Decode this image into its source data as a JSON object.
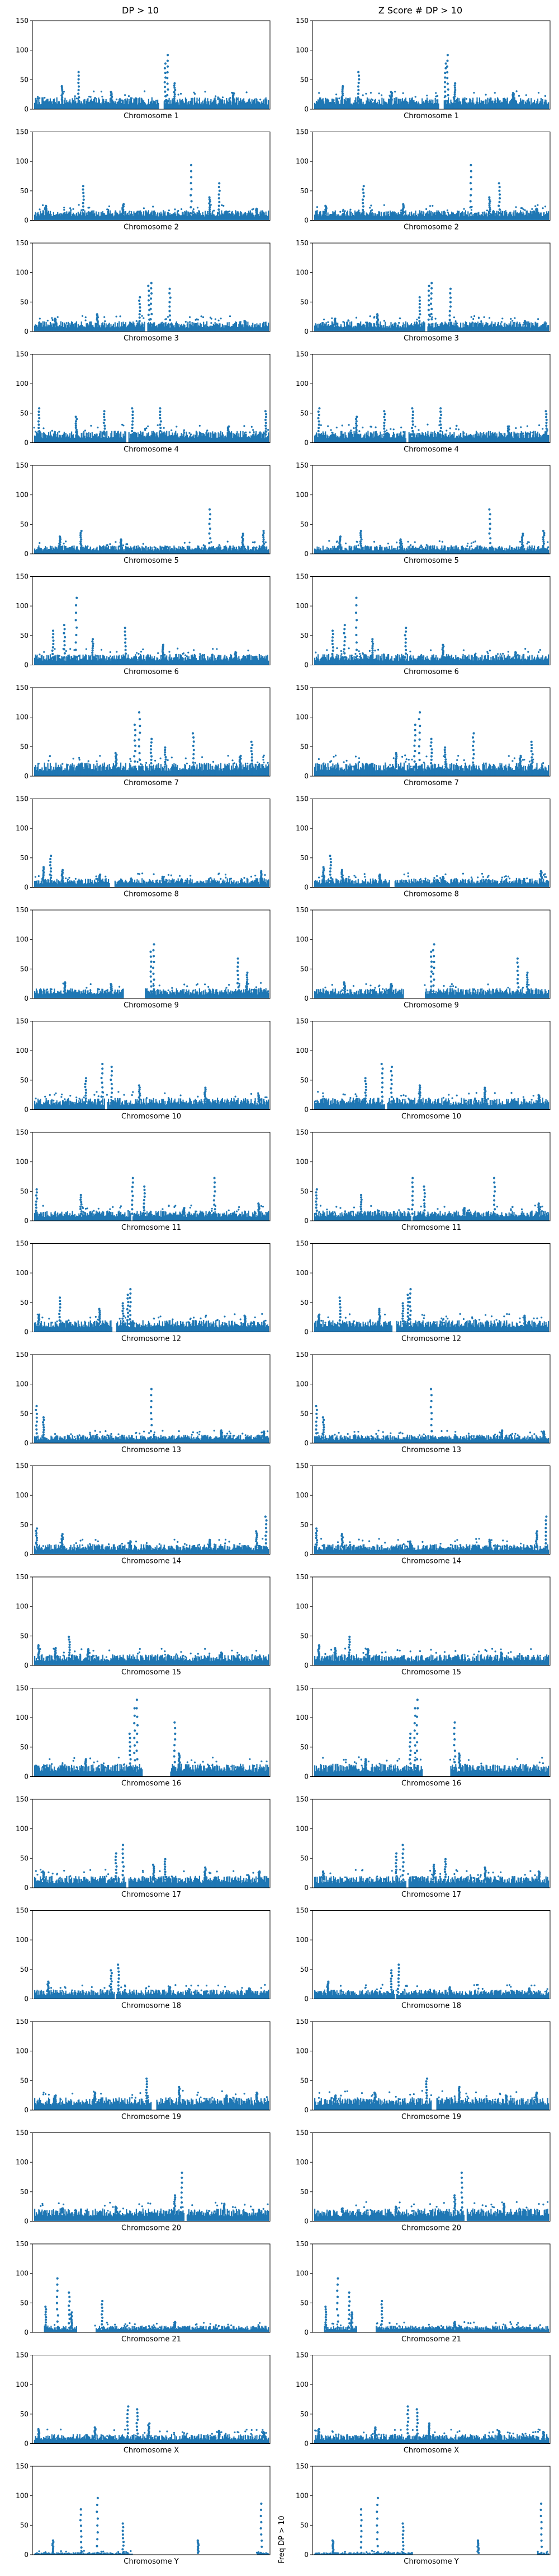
{
  "columns": [
    {
      "title": "DP > 10"
    },
    {
      "title": "Z Score # DP > 10"
    }
  ],
  "y_axis_side_label": "Freq DP > 10",
  "style": {
    "series_color": "#1f77b4",
    "axis_color": "#000000"
  },
  "chart_data": {
    "type": "scatter",
    "layout": "grid 23 rows x 2 columns",
    "y_ticks": [
      0,
      50,
      100,
      150
    ],
    "ylim": [
      0,
      150
    ],
    "grid": false,
    "baseline_level": 12,
    "rows": [
      {
        "xlabel": "Chromosome 1",
        "baseline": 14,
        "peaks": [
          [
            0.12,
            40
          ],
          [
            0.19,
            65
          ],
          [
            0.33,
            30
          ],
          [
            0.56,
            80
          ],
          [
            0.57,
            95
          ],
          [
            0.6,
            45
          ],
          [
            0.85,
            28
          ]
        ],
        "gaps": [
          [
            0.53,
            0.55
          ]
        ]
      },
      {
        "xlabel": "Chromosome 2",
        "baseline": 12,
        "peaks": [
          [
            0.05,
            25
          ],
          [
            0.21,
            60
          ],
          [
            0.38,
            28
          ],
          [
            0.67,
            97
          ],
          [
            0.75,
            40
          ],
          [
            0.79,
            65
          ],
          [
            0.95,
            20
          ]
        ],
        "gaps": []
      },
      {
        "xlabel": "Chromosome 3",
        "baseline": 12,
        "peaks": [
          [
            0.09,
            22
          ],
          [
            0.27,
            30
          ],
          [
            0.45,
            60
          ],
          [
            0.49,
            80
          ],
          [
            0.5,
            85
          ],
          [
            0.58,
            75
          ],
          [
            0.9,
            18
          ]
        ],
        "gaps": [
          [
            0.47,
            0.48
          ]
        ]
      },
      {
        "xlabel": "Chromosome 4",
        "baseline": 14,
        "peaks": [
          [
            0.02,
            60
          ],
          [
            0.18,
            45
          ],
          [
            0.3,
            55
          ],
          [
            0.42,
            60
          ],
          [
            0.54,
            60
          ],
          [
            0.83,
            28
          ],
          [
            0.99,
            55
          ]
        ],
        "gaps": [
          [
            0.39,
            0.4
          ]
        ]
      },
      {
        "xlabel": "Chromosome 5",
        "baseline": 10,
        "peaks": [
          [
            0.11,
            30
          ],
          [
            0.2,
            40
          ],
          [
            0.37,
            25
          ],
          [
            0.75,
            78
          ],
          [
            0.89,
            35
          ],
          [
            0.98,
            40
          ]
        ],
        "gaps": []
      },
      {
        "xlabel": "Chromosome 6",
        "baseline": 13,
        "peaks": [
          [
            0.08,
            60
          ],
          [
            0.13,
            70
          ],
          [
            0.18,
            118
          ],
          [
            0.25,
            45
          ],
          [
            0.39,
            65
          ],
          [
            0.55,
            35
          ],
          [
            0.86,
            22
          ]
        ],
        "gaps": []
      },
      {
        "xlabel": "Chromosome 7",
        "baseline": 16,
        "peaks": [
          [
            0.35,
            40
          ],
          [
            0.43,
            90
          ],
          [
            0.45,
            112
          ],
          [
            0.5,
            65
          ],
          [
            0.56,
            50
          ],
          [
            0.68,
            75
          ],
          [
            0.88,
            35
          ],
          [
            0.93,
            60
          ]
        ],
        "gaps": []
      },
      {
        "xlabel": "Chromosome 8",
        "baseline": 11,
        "peaks": [
          [
            0.04,
            35
          ],
          [
            0.07,
            55
          ],
          [
            0.12,
            30
          ],
          [
            0.28,
            22
          ],
          [
            0.55,
            18
          ],
          [
            0.97,
            28
          ]
        ],
        "gaps": [
          [
            0.32,
            0.34
          ]
        ]
      },
      {
        "xlabel": "Chromosome 9",
        "baseline": 12,
        "peaks": [
          [
            0.13,
            28
          ],
          [
            0.33,
            25
          ],
          [
            0.5,
            82
          ],
          [
            0.51,
            95
          ],
          [
            0.87,
            70
          ],
          [
            0.91,
            45
          ]
        ],
        "gaps": [
          [
            0.38,
            0.47
          ]
        ]
      },
      {
        "xlabel": "Chromosome 10",
        "baseline": 14,
        "peaks": [
          [
            0.22,
            55
          ],
          [
            0.29,
            80
          ],
          [
            0.33,
            75
          ],
          [
            0.45,
            42
          ],
          [
            0.73,
            38
          ],
          [
            0.96,
            25
          ]
        ],
        "gaps": [
          [
            0.3,
            0.31
          ]
        ]
      },
      {
        "xlabel": "Chromosome 11",
        "baseline": 12,
        "peaks": [
          [
            0.01,
            55
          ],
          [
            0.2,
            45
          ],
          [
            0.42,
            75
          ],
          [
            0.47,
            60
          ],
          [
            0.64,
            22
          ],
          [
            0.77,
            75
          ],
          [
            0.96,
            30
          ]
        ],
        "gaps": [
          [
            0.41,
            0.42
          ]
        ]
      },
      {
        "xlabel": "Chromosome 12",
        "baseline": 14,
        "peaks": [
          [
            0.02,
            30
          ],
          [
            0.11,
            60
          ],
          [
            0.28,
            40
          ],
          [
            0.38,
            50
          ],
          [
            0.4,
            65
          ],
          [
            0.41,
            75
          ],
          [
            0.9,
            28
          ]
        ],
        "gaps": [
          [
            0.33,
            0.35
          ]
        ]
      },
      {
        "xlabel": "Chromosome 13",
        "baseline": 10,
        "peaks": [
          [
            0.01,
            65
          ],
          [
            0.04,
            45
          ],
          [
            0.5,
            95
          ],
          [
            0.8,
            22
          ],
          [
            0.98,
            20
          ]
        ],
        "gaps": []
      },
      {
        "xlabel": "Chromosome 14",
        "baseline": 12,
        "peaks": [
          [
            0.01,
            45
          ],
          [
            0.12,
            35
          ],
          [
            0.41,
            22
          ],
          [
            0.75,
            25
          ],
          [
            0.95,
            40
          ],
          [
            0.99,
            66
          ]
        ],
        "gaps": []
      },
      {
        "xlabel": "Chromosome 15",
        "baseline": 13,
        "peaks": [
          [
            0.02,
            35
          ],
          [
            0.09,
            30
          ],
          [
            0.15,
            50
          ],
          [
            0.23,
            28
          ],
          [
            0.8,
            22
          ]
        ],
        "gaps": []
      },
      {
        "xlabel": "Chromosome 16",
        "baseline": 15,
        "peaks": [
          [
            0.22,
            30
          ],
          [
            0.41,
            75
          ],
          [
            0.43,
            120
          ],
          [
            0.44,
            135
          ],
          [
            0.6,
            95
          ],
          [
            0.62,
            40
          ]
        ],
        "gaps": [
          [
            0.46,
            0.58
          ]
        ]
      },
      {
        "xlabel": "Chromosome 17",
        "baseline": 14,
        "peaks": [
          [
            0.04,
            28
          ],
          [
            0.35,
            60
          ],
          [
            0.38,
            75
          ],
          [
            0.51,
            40
          ],
          [
            0.56,
            50
          ],
          [
            0.73,
            35
          ],
          [
            0.96,
            28
          ]
        ],
        "gaps": [
          [
            0.39,
            0.4
          ]
        ]
      },
      {
        "xlabel": "Chromosome 18",
        "baseline": 11,
        "peaks": [
          [
            0.06,
            30
          ],
          [
            0.33,
            50
          ],
          [
            0.36,
            60
          ],
          [
            0.58,
            20
          ],
          [
            0.92,
            18
          ]
        ],
        "gaps": [
          [
            0.34,
            0.35
          ]
        ]
      },
      {
        "xlabel": "Chromosome 19",
        "baseline": 15,
        "peaks": [
          [
            0.09,
            25
          ],
          [
            0.26,
            30
          ],
          [
            0.48,
            55
          ],
          [
            0.62,
            40
          ],
          [
            0.82,
            25
          ],
          [
            0.95,
            30
          ]
        ],
        "gaps": [
          [
            0.5,
            0.52
          ]
        ]
      },
      {
        "xlabel": "Chromosome 20",
        "baseline": 15,
        "peaks": [
          [
            0.12,
            22
          ],
          [
            0.35,
            25
          ],
          [
            0.6,
            45
          ],
          [
            0.63,
            85
          ],
          [
            0.81,
            30
          ]
        ],
        "gaps": [
          [
            0.64,
            0.65
          ]
        ]
      },
      {
        "xlabel": "Chromosome 21",
        "baseline": 8,
        "peaks": [
          [
            0.05,
            45
          ],
          [
            0.1,
            95
          ],
          [
            0.15,
            70
          ],
          [
            0.16,
            35
          ],
          [
            0.29,
            55
          ],
          [
            0.6,
            18
          ]
        ],
        "gaps": [
          [
            0.0,
            0.04
          ],
          [
            0.18,
            0.26
          ]
        ]
      },
      {
        "xlabel": "Chromosome X",
        "baseline": 11,
        "peaks": [
          [
            0.02,
            25
          ],
          [
            0.26,
            28
          ],
          [
            0.4,
            65
          ],
          [
            0.44,
            60
          ],
          [
            0.49,
            35
          ],
          [
            0.79,
            22
          ],
          [
            0.98,
            20
          ]
        ],
        "gaps": []
      },
      {
        "xlabel": "Chromosome Y",
        "baseline": 3,
        "peaks": [
          [
            0.08,
            25
          ],
          [
            0.2,
            80
          ],
          [
            0.27,
            100
          ],
          [
            0.38,
            55
          ],
          [
            0.7,
            25
          ],
          [
            0.97,
            90
          ]
        ],
        "gaps": [
          [
            0.42,
            0.95
          ]
        ]
      }
    ]
  }
}
